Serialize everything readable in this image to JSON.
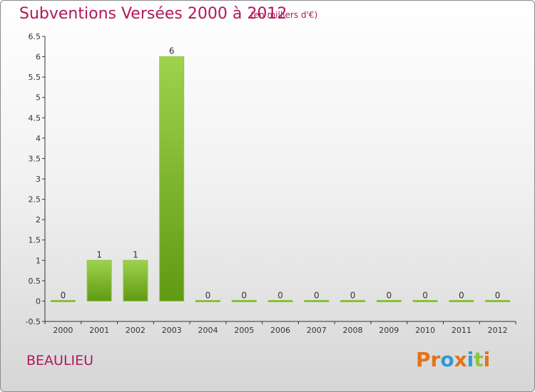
{
  "header": {
    "title": "Subventions Versées 2000 à 2012",
    "subtitle": "(en milliers d'€)"
  },
  "footer": {
    "commune": "BEAULIEU",
    "logo": [
      "P",
      "r",
      "o",
      "x",
      "i",
      "t",
      "i"
    ]
  },
  "colors": {
    "title": "#b0185a",
    "bar_light": "#9fd24e",
    "bar_dark": "#5f9a12",
    "logo": [
      "#e2731b",
      "#e2731b",
      "#2f9ad6",
      "#e2731b",
      "#2f9ad6",
      "#8cc63f",
      "#e2731b"
    ]
  },
  "chart_data": {
    "type": "bar",
    "categories": [
      "2000",
      "2001",
      "2002",
      "2003",
      "2004",
      "2005",
      "2006",
      "2007",
      "2008",
      "2009",
      "2010",
      "2011",
      "2012"
    ],
    "values": [
      0,
      1,
      1,
      6,
      0,
      0,
      0,
      0,
      0,
      0,
      0,
      0,
      0
    ],
    "value_labels": [
      "0",
      "1",
      "1",
      "6",
      "0",
      "0",
      "0",
      "0",
      "0",
      "0",
      "0",
      "0",
      "0"
    ],
    "yticks": [
      "-0.5",
      "0",
      "0.5",
      "1",
      "1.5",
      "2",
      "2.5",
      "3",
      "3.5",
      "4",
      "4.5",
      "5",
      "5.5",
      "6",
      "6.5"
    ],
    "ylim": [
      -0.5,
      6.5
    ],
    "title": "Subventions Versées 2000 à 2012",
    "xlabel": "",
    "ylabel": "",
    "grid": false,
    "legend": "none"
  }
}
